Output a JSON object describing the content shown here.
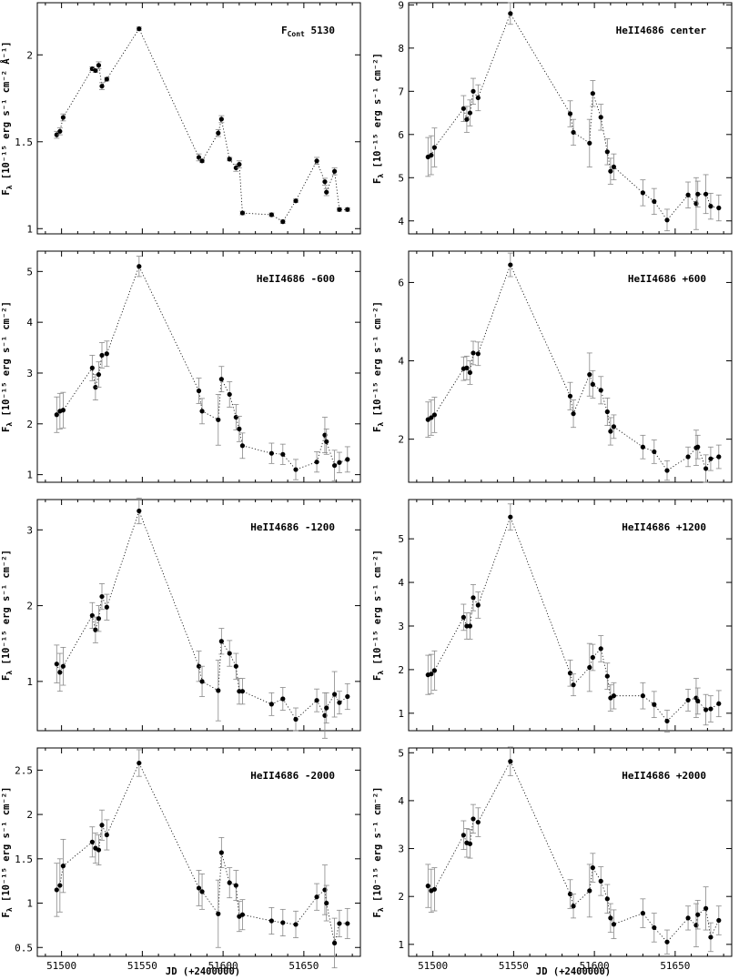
{
  "figure": {
    "xlabel": "JD (+2400000)",
    "ylabel_prefix": "F",
    "ylabel_sub": "λ",
    "ylabel_unit_cont": "[10⁻¹⁵ erg s⁻¹ cm⁻² Å⁻¹]",
    "ylabel_unit_line": "[10⁻¹⁵ erg s⁻¹ cm⁻²]"
  },
  "chart_data": [
    {
      "type": "scatter",
      "title": "F_Cont 5130",
      "label_main": "F",
      "label_sub": "Cont",
      "label_rest": "5130",
      "unit": "cont",
      "xlim": [
        51485,
        51685
      ],
      "ylim": [
        0.97,
        2.3
      ],
      "xticks": [
        51500,
        51550,
        51600,
        51650
      ],
      "xticklabels": [],
      "yticks": [
        1,
        1.5,
        2
      ],
      "x": [
        51497,
        51499,
        51501,
        51519,
        51521,
        51523,
        51525,
        51528,
        51548,
        51585,
        51587,
        51597,
        51599,
        51604,
        51608,
        51610,
        51612,
        51630,
        51637,
        51645,
        51658,
        51663,
        51664,
        51669,
        51672,
        51677
      ],
      "y": [
        1.54,
        1.56,
        1.64,
        1.92,
        1.91,
        1.94,
        1.82,
        1.86,
        2.15,
        1.41,
        1.39,
        1.55,
        1.63,
        1.4,
        1.35,
        1.37,
        1.09,
        1.08,
        1.04,
        1.16,
        1.39,
        1.27,
        1.21,
        1.33,
        1.11,
        1.11
      ],
      "yerr": [
        0.02,
        0.02,
        0.02,
        0.01,
        0.01,
        0.02,
        0.02,
        0.01,
        0.01,
        0.02,
        0.01,
        0.02,
        0.02,
        0.01,
        0.02,
        0.02,
        0.01,
        0.01,
        0.01,
        0.01,
        0.02,
        0.02,
        0.02,
        0.02,
        0.01,
        0.01
      ]
    },
    {
      "type": "scatter",
      "title": "HeII4686 center",
      "label_main": "HeII4686 center",
      "label_sub": "",
      "label_rest": "",
      "unit": "line",
      "xlim": [
        51485,
        51685
      ],
      "ylim": [
        3.7,
        9.05
      ],
      "xticks": [
        51500,
        51550,
        51600,
        51650
      ],
      "xticklabels": [],
      "yticks": [
        4,
        5,
        6,
        7,
        8,
        9
      ],
      "x": [
        51497,
        51499,
        51501,
        51519,
        51521,
        51523,
        51525,
        51528,
        51548,
        51585,
        51587,
        51597,
        51599,
        51604,
        51608,
        51610,
        51612,
        51630,
        51637,
        51645,
        51658,
        51663,
        51664,
        51669,
        51672,
        51677
      ],
      "y": [
        5.48,
        5.52,
        5.7,
        6.6,
        6.35,
        6.5,
        7.0,
        6.85,
        8.8,
        6.48,
        6.05,
        5.8,
        6.95,
        6.4,
        5.6,
        5.15,
        5.25,
        4.65,
        4.45,
        4.02,
        4.6,
        4.4,
        4.62,
        4.62,
        4.34,
        4.3
      ],
      "yerr": [
        0.45,
        0.45,
        0.45,
        0.3,
        0.3,
        0.3,
        0.3,
        0.3,
        0.25,
        0.3,
        0.3,
        0.55,
        0.3,
        0.3,
        0.3,
        0.3,
        0.3,
        0.3,
        0.3,
        0.25,
        0.3,
        0.6,
        0.3,
        0.45,
        0.3,
        0.3
      ]
    },
    {
      "type": "scatter",
      "title": "HeII4686 -600",
      "label_main": "HeII4686 -600",
      "label_sub": "",
      "label_rest": "",
      "unit": "line",
      "xlim": [
        51485,
        51685
      ],
      "ylim": [
        0.85,
        5.4
      ],
      "xticks": [
        51500,
        51550,
        51600,
        51650
      ],
      "xticklabels": [],
      "yticks": [
        1,
        2,
        3,
        4,
        5
      ],
      "x": [
        51497,
        51499,
        51501,
        51519,
        51521,
        51523,
        51525,
        51528,
        51548,
        51585,
        51587,
        51597,
        51599,
        51604,
        51608,
        51610,
        51612,
        51630,
        51637,
        51645,
        51658,
        51663,
        51664,
        51669,
        51672,
        51677
      ],
      "y": [
        2.18,
        2.25,
        2.27,
        3.1,
        2.72,
        2.97,
        3.35,
        3.38,
        5.1,
        2.65,
        2.25,
        2.08,
        2.88,
        2.58,
        2.13,
        1.9,
        1.57,
        1.42,
        1.4,
        1.1,
        1.25,
        1.78,
        1.65,
        1.18,
        1.24,
        1.3
      ],
      "yerr": [
        0.35,
        0.35,
        0.35,
        0.25,
        0.25,
        0.25,
        0.25,
        0.25,
        0.2,
        0.25,
        0.25,
        0.5,
        0.25,
        0.25,
        0.25,
        0.25,
        0.25,
        0.2,
        0.2,
        0.2,
        0.2,
        0.35,
        0.25,
        0.3,
        0.2,
        0.25
      ]
    },
    {
      "type": "scatter",
      "title": "HeII4686 +600",
      "label_main": "HeII4686 +600",
      "label_sub": "",
      "label_rest": "",
      "unit": "line",
      "xlim": [
        51485,
        51685
      ],
      "ylim": [
        0.9,
        6.8
      ],
      "xticks": [
        51500,
        51550,
        51600,
        51650
      ],
      "xticklabels": [],
      "yticks": [
        2,
        4,
        6
      ],
      "x": [
        51497,
        51499,
        51501,
        51519,
        51521,
        51523,
        51525,
        51528,
        51548,
        51585,
        51587,
        51597,
        51599,
        51604,
        51608,
        51610,
        51612,
        51630,
        51637,
        51645,
        51658,
        51663,
        51664,
        51669,
        51672,
        51677
      ],
      "y": [
        2.5,
        2.55,
        2.62,
        3.8,
        3.82,
        3.7,
        4.2,
        4.18,
        6.45,
        3.1,
        2.65,
        3.65,
        3.4,
        3.25,
        2.7,
        2.2,
        2.32,
        1.8,
        1.68,
        1.2,
        1.55,
        1.78,
        1.8,
        1.25,
        1.5,
        1.55
      ],
      "yerr": [
        0.45,
        0.45,
        0.45,
        0.3,
        0.3,
        0.3,
        0.3,
        0.3,
        0.3,
        0.35,
        0.35,
        0.55,
        0.35,
        0.35,
        0.35,
        0.35,
        0.3,
        0.3,
        0.3,
        0.25,
        0.25,
        0.45,
        0.3,
        0.35,
        0.3,
        0.3
      ]
    },
    {
      "type": "scatter",
      "title": "HeII4686 -1200",
      "label_main": "HeII4686 -1200",
      "label_sub": "",
      "label_rest": "",
      "unit": "line",
      "xlim": [
        51485,
        51685
      ],
      "ylim": [
        0.35,
        3.4
      ],
      "xticks": [
        51500,
        51550,
        51600,
        51650
      ],
      "xticklabels": [],
      "yticks": [
        1,
        2,
        3
      ],
      "x": [
        51497,
        51499,
        51501,
        51519,
        51521,
        51523,
        51525,
        51528,
        51548,
        51585,
        51587,
        51597,
        51599,
        51604,
        51608,
        51610,
        51612,
        51630,
        51637,
        51645,
        51658,
        51663,
        51664,
        51669,
        51672,
        51677
      ],
      "y": [
        1.23,
        1.12,
        1.2,
        1.87,
        1.68,
        1.83,
        2.12,
        1.98,
        3.25,
        1.2,
        1.0,
        0.88,
        1.53,
        1.37,
        1.2,
        0.87,
        0.87,
        0.7,
        0.77,
        0.5,
        0.75,
        0.55,
        0.65,
        0.83,
        0.72,
        0.8
      ],
      "yerr": [
        0.25,
        0.25,
        0.25,
        0.17,
        0.17,
        0.17,
        0.17,
        0.17,
        0.17,
        0.2,
        0.2,
        0.4,
        0.17,
        0.17,
        0.17,
        0.17,
        0.17,
        0.15,
        0.15,
        0.15,
        0.15,
        0.3,
        0.2,
        0.3,
        0.15,
        0.17
      ]
    },
    {
      "type": "scatter",
      "title": "HeII4686 +1200",
      "label_main": "HeII4686 +1200",
      "label_sub": "",
      "label_rest": "",
      "unit": "line",
      "xlim": [
        51485,
        51685
      ],
      "ylim": [
        0.6,
        5.9
      ],
      "xticks": [
        51500,
        51550,
        51600,
        51650
      ],
      "xticklabels": [],
      "yticks": [
        1,
        2,
        3,
        4,
        5
      ],
      "x": [
        51497,
        51499,
        51501,
        51519,
        51521,
        51523,
        51525,
        51528,
        51548,
        51585,
        51587,
        51597,
        51599,
        51604,
        51608,
        51610,
        51612,
        51630,
        51637,
        51645,
        51658,
        51663,
        51664,
        51669,
        51672,
        51677
      ],
      "y": [
        1.88,
        1.9,
        1.98,
        3.2,
        3.0,
        3.0,
        3.65,
        3.48,
        5.5,
        1.92,
        1.65,
        2.05,
        2.28,
        2.48,
        1.85,
        1.35,
        1.4,
        1.4,
        1.2,
        0.82,
        1.3,
        1.35,
        1.28,
        1.08,
        1.1,
        1.22
      ],
      "yerr": [
        0.45,
        0.45,
        0.45,
        0.3,
        0.3,
        0.3,
        0.3,
        0.3,
        0.3,
        0.3,
        0.25,
        0.55,
        0.3,
        0.3,
        0.3,
        0.3,
        0.3,
        0.3,
        0.3,
        0.25,
        0.25,
        0.45,
        0.3,
        0.35,
        0.3,
        0.3
      ]
    },
    {
      "type": "scatter",
      "title": "HeII4686 -2000",
      "label_main": "HeII4686 -2000",
      "label_sub": "",
      "label_rest": "",
      "unit": "line",
      "xlim": [
        51485,
        51685
      ],
      "ylim": [
        0.4,
        2.75
      ],
      "xticks": [
        51500,
        51550,
        51600,
        51650
      ],
      "xticklabels": [
        "51500",
        "51550",
        "51600",
        "51650"
      ],
      "yticks": [
        0.5,
        1,
        1.5,
        2,
        2.5
      ],
      "x": [
        51497,
        51499,
        51501,
        51519,
        51521,
        51523,
        51525,
        51528,
        51548,
        51585,
        51587,
        51597,
        51599,
        51604,
        51608,
        51610,
        51612,
        51630,
        51637,
        51645,
        51658,
        51663,
        51664,
        51669,
        51672,
        51677
      ],
      "y": [
        1.15,
        1.2,
        1.42,
        1.69,
        1.62,
        1.6,
        1.88,
        1.77,
        2.58,
        1.17,
        1.13,
        0.88,
        1.57,
        1.23,
        1.2,
        0.85,
        0.87,
        0.8,
        0.78,
        0.76,
        1.07,
        1.15,
        1.0,
        0.55,
        0.77,
        0.77
      ],
      "yerr": [
        0.3,
        0.3,
        0.3,
        0.17,
        0.17,
        0.17,
        0.17,
        0.17,
        0.15,
        0.2,
        0.2,
        0.38,
        0.17,
        0.17,
        0.17,
        0.17,
        0.17,
        0.15,
        0.15,
        0.15,
        0.15,
        0.28,
        0.2,
        0.28,
        0.15,
        0.17
      ]
    },
    {
      "type": "scatter",
      "title": "HeII4686 +2000",
      "label_main": "HeII4686 +2000",
      "label_sub": "",
      "label_rest": "",
      "unit": "line",
      "xlim": [
        51485,
        51685
      ],
      "ylim": [
        0.75,
        5.1
      ],
      "xticks": [
        51500,
        51550,
        51600,
        51650
      ],
      "xticklabels": [
        "51500",
        "51550",
        "51600",
        "51650"
      ],
      "yticks": [
        1,
        2,
        3,
        4,
        5
      ],
      "x": [
        51497,
        51499,
        51501,
        51519,
        51521,
        51523,
        51525,
        51528,
        51548,
        51585,
        51587,
        51597,
        51599,
        51604,
        51608,
        51610,
        51612,
        51630,
        51637,
        51645,
        51658,
        51663,
        51664,
        51669,
        51672,
        51677
      ],
      "y": [
        2.22,
        2.12,
        2.15,
        3.28,
        3.12,
        3.1,
        3.62,
        3.55,
        4.82,
        2.05,
        1.8,
        2.12,
        2.6,
        2.32,
        1.95,
        1.55,
        1.42,
        1.65,
        1.35,
        1.05,
        1.55,
        1.4,
        1.62,
        1.75,
        1.15,
        1.5
      ],
      "yerr": [
        0.45,
        0.45,
        0.45,
        0.3,
        0.3,
        0.3,
        0.3,
        0.3,
        0.3,
        0.3,
        0.25,
        0.55,
        0.3,
        0.3,
        0.3,
        0.3,
        0.3,
        0.3,
        0.3,
        0.25,
        0.25,
        0.45,
        0.3,
        0.45,
        0.3,
        0.3
      ]
    }
  ]
}
